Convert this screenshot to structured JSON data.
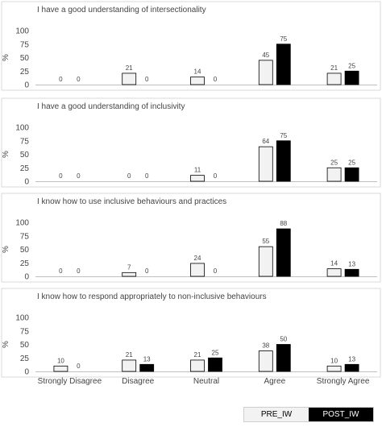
{
  "chart_data": {
    "type": "bar",
    "ylabel": "%",
    "ylim": [
      0,
      100
    ],
    "yticks": [
      0,
      25,
      50,
      75,
      100
    ],
    "categories": [
      "Strongly Disagree",
      "Disagree",
      "Neutral",
      "Agree",
      "Strongly Agree"
    ],
    "colors": {
      "PRE_IW": "#f2f2f2",
      "POST_IW": "#000000",
      "edge": "#000000"
    },
    "legend": {
      "position": "bottom-right",
      "entries": [
        "PRE_IW",
        "POST_IW"
      ]
    },
    "panels": [
      {
        "title": "I have a good understanding of intersectionality",
        "series": [
          {
            "name": "PRE_IW",
            "values": [
              0,
              21,
              14,
              45,
              21
            ]
          },
          {
            "name": "POST_IW",
            "values": [
              0,
              0,
              0,
              75,
              25
            ]
          }
        ]
      },
      {
        "title": "I have a good understanding of inclusivity",
        "series": [
          {
            "name": "PRE_IW",
            "values": [
              0,
              0,
              11,
              64,
              25
            ]
          },
          {
            "name": "POST_IW",
            "values": [
              0,
              0,
              0,
              75,
              25
            ]
          }
        ]
      },
      {
        "title": "I know how to use inclusive behaviours and practices",
        "series": [
          {
            "name": "PRE_IW",
            "values": [
              0,
              7,
              24,
              55,
              14
            ]
          },
          {
            "name": "POST_IW",
            "values": [
              0,
              0,
              0,
              88,
              13
            ]
          }
        ]
      },
      {
        "title": "I know how to respond appropriately to non-inclusive behaviours",
        "series": [
          {
            "name": "PRE_IW",
            "values": [
              10,
              21,
              21,
              38,
              10
            ]
          },
          {
            "name": "POST_IW",
            "values": [
              0,
              13,
              25,
              50,
              13
            ]
          }
        ]
      }
    ]
  }
}
